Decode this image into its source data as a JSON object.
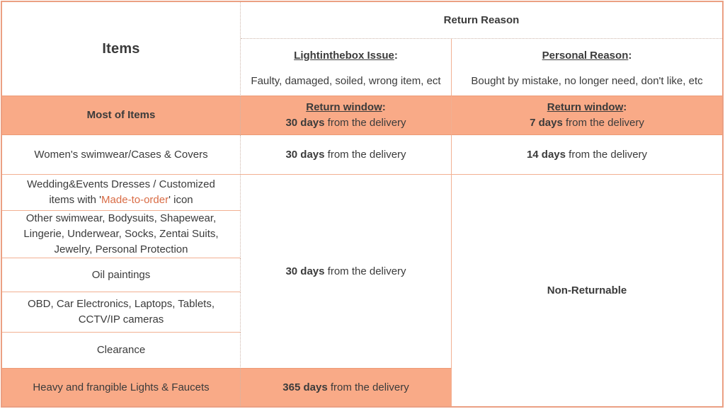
{
  "colors": {
    "highlight_fill": "#F9AA87",
    "outer_border": "#EBA083",
    "row_line": "#F2B092",
    "strong_line": "#EC9A76",
    "dotted_line": "#CDB6AB",
    "text": "#3B3B3B",
    "made_to_order_text": "#D96C45"
  },
  "header": {
    "items_label": "Items",
    "return_reason_label": "Return Reason",
    "issue": {
      "title": "Lightinthebox Issue",
      "colon": ":",
      "description": "Faulty, damaged, soiled, wrong item, ect"
    },
    "personal": {
      "title": "Personal Reason",
      "colon": ":",
      "description": "Bought by mistake, no longer need, don't like, etc"
    }
  },
  "rows": {
    "most_of_items": {
      "label": "Most of Items",
      "issue": {
        "window_title": "Return window",
        "colon": ":",
        "duration": "30 days",
        "suffix": " from the delivery"
      },
      "personal": {
        "window_title": "Return window",
        "colon": ":",
        "duration": "7 days",
        "suffix": " from the delivery"
      }
    },
    "swimwear_cases": {
      "label": "Women's swimwear/Cases & Covers",
      "issue": {
        "duration": "30 days",
        "suffix": " from the delivery"
      },
      "personal": {
        "duration": "14 days",
        "suffix": " from the delivery"
      }
    },
    "non_returnable_group": {
      "labels": {
        "wedding": {
          "pre": "Wedding&Events Dresses / Customized items with '",
          "highlight": "Made-to-order",
          "post": "' icon"
        },
        "other_intimates": "Other swimwear, Bodysuits, Shapewear, Lingerie, Underwear, Socks, Zentai Suits, Jewelry, Personal Protection",
        "oil_paintings": "Oil paintings",
        "electronics": "OBD, Car Electronics, Laptops, Tablets, CCTV/IP cameras",
        "clearance": "Clearance"
      },
      "issue": {
        "duration": "30 days",
        "suffix": " from the delivery"
      },
      "personal": "Non-Returnable"
    },
    "heavy_frangible": {
      "label": "Heavy and frangible Lights & Faucets",
      "issue": {
        "duration": "365 days",
        "suffix": " from the delivery"
      }
    }
  }
}
